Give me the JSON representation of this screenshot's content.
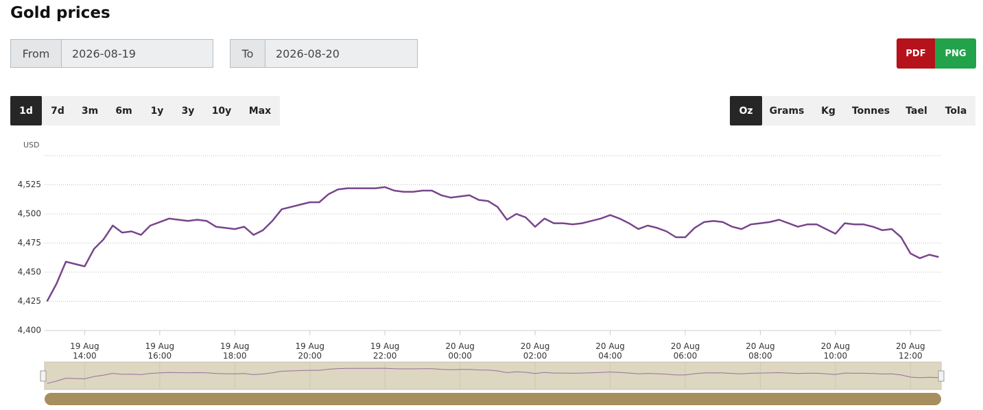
{
  "header": {
    "title": "Gold prices"
  },
  "from": {
    "label": "From",
    "value": "2026-08-19"
  },
  "to": {
    "label": "To",
    "value": "2026-08-20"
  },
  "export": [
    {
      "label": "PDF",
      "color": "#b5121b"
    },
    {
      "label": "PNG",
      "color": "#22a24a"
    }
  ],
  "ranges": [
    {
      "label": "1d",
      "active": true
    },
    {
      "label": "7d",
      "active": false
    },
    {
      "label": "3m",
      "active": false
    },
    {
      "label": "6m",
      "active": false
    },
    {
      "label": "1y",
      "active": false
    },
    {
      "label": "3y",
      "active": false
    },
    {
      "label": "10y",
      "active": false
    },
    {
      "label": "Max",
      "active": false
    }
  ],
  "units": [
    {
      "label": "Oz",
      "active": true
    },
    {
      "label": "Grams",
      "active": false
    },
    {
      "label": "Kg",
      "active": false
    },
    {
      "label": "Tonnes",
      "active": false
    },
    {
      "label": "Tael",
      "active": false
    },
    {
      "label": "Tola",
      "active": false
    }
  ],
  "chart_data": {
    "type": "line",
    "y_label": "USD",
    "color": "#77458b",
    "grid": true,
    "x": [
      "19 Aug 13:00",
      "19 Aug 13:15",
      "19 Aug 13:30",
      "19 Aug 13:45",
      "19 Aug 14:00",
      "19 Aug 14:15",
      "19 Aug 14:30",
      "19 Aug 14:45",
      "19 Aug 15:00",
      "19 Aug 15:15",
      "19 Aug 15:30",
      "19 Aug 15:45",
      "19 Aug 16:00",
      "19 Aug 16:15",
      "19 Aug 16:30",
      "19 Aug 16:45",
      "19 Aug 17:00",
      "19 Aug 17:15",
      "19 Aug 17:30",
      "19 Aug 17:45",
      "19 Aug 18:00",
      "19 Aug 18:15",
      "19 Aug 18:30",
      "19 Aug 18:45",
      "19 Aug 19:00",
      "19 Aug 19:15",
      "19 Aug 19:30",
      "19 Aug 19:45",
      "19 Aug 20:00",
      "19 Aug 20:15",
      "19 Aug 20:30",
      "19 Aug 20:45",
      "19 Aug 21:00",
      "19 Aug 21:15",
      "19 Aug 21:30",
      "19 Aug 21:45",
      "19 Aug 22:00",
      "19 Aug 22:15",
      "19 Aug 22:30",
      "19 Aug 22:45",
      "19 Aug 23:00",
      "19 Aug 23:15",
      "19 Aug 23:30",
      "19 Aug 23:45",
      "20 Aug 00:00",
      "20 Aug 00:15",
      "20 Aug 00:30",
      "20 Aug 00:45",
      "20 Aug 01:00",
      "20 Aug 01:15",
      "20 Aug 01:30",
      "20 Aug 01:45",
      "20 Aug 02:00",
      "20 Aug 02:15",
      "20 Aug 02:30",
      "20 Aug 02:45",
      "20 Aug 03:00",
      "20 Aug 03:15",
      "20 Aug 03:30",
      "20 Aug 03:45",
      "20 Aug 04:00",
      "20 Aug 04:15",
      "20 Aug 04:30",
      "20 Aug 04:45",
      "20 Aug 05:00",
      "20 Aug 05:15",
      "20 Aug 05:30",
      "20 Aug 05:45",
      "20 Aug 06:00",
      "20 Aug 06:15",
      "20 Aug 06:30",
      "20 Aug 06:45",
      "20 Aug 07:00",
      "20 Aug 07:15",
      "20 Aug 07:30",
      "20 Aug 07:45",
      "20 Aug 08:00",
      "20 Aug 08:15",
      "20 Aug 08:30",
      "20 Aug 08:45",
      "20 Aug 09:00",
      "20 Aug 09:15",
      "20 Aug 09:30",
      "20 Aug 09:45",
      "20 Aug 10:00",
      "20 Aug 10:15",
      "20 Aug 10:30",
      "20 Aug 10:45",
      "20 Aug 11:00",
      "20 Aug 11:15",
      "20 Aug 11:30",
      "20 Aug 11:45",
      "20 Aug 12:00",
      "20 Aug 12:15",
      "20 Aug 12:30",
      "20 Aug 12:45"
    ],
    "values": [
      4425,
      4440,
      4459,
      4457,
      4455,
      4470,
      4478,
      4490,
      4484,
      4485,
      4482,
      4490,
      4493,
      4496,
      4495,
      4494,
      4495,
      4494,
      4489,
      4488,
      4487,
      4489,
      4482,
      4486,
      4494,
      4504,
      4506,
      4508,
      4510,
      4510,
      4517,
      4521,
      4522,
      4522,
      4522,
      4522,
      4523,
      4520,
      4519,
      4519,
      4520,
      4520,
      4516,
      4514,
      4515,
      4516,
      4512,
      4511,
      4506,
      4495,
      4500,
      4497,
      4489,
      4496,
      4492,
      4492,
      4491,
      4492,
      4494,
      4496,
      4499,
      4496,
      4492,
      4487,
      4490,
      4488,
      4485,
      4480,
      4480,
      4488,
      4493,
      4494,
      4493,
      4489,
      4487,
      4491,
      4492,
      4493,
      4495,
      4492,
      4489,
      4491,
      4491,
      4487,
      4483,
      4492,
      4491,
      4491,
      4489,
      4486,
      4487,
      4480,
      4466,
      4462,
      4465,
      4463
    ],
    "xlim": [
      "19 Aug 12:56",
      "20 Aug 12:49"
    ],
    "xticks": [
      "19 Aug 14:00",
      "19 Aug 16:00",
      "19 Aug 18:00",
      "19 Aug 20:00",
      "19 Aug 22:00",
      "20 Aug 00:00",
      "20 Aug 02:00",
      "20 Aug 04:00",
      "20 Aug 06:00",
      "20 Aug 08:00",
      "20 Aug 10:00",
      "20 Aug 12:00"
    ],
    "ylim": [
      4400,
      4550
    ],
    "yticks": [
      {
        "value": 4400,
        "label": "4,400"
      },
      {
        "value": 4425,
        "label": "4,425"
      },
      {
        "value": 4450,
        "label": "4,450"
      },
      {
        "value": 4475,
        "label": "4,475"
      },
      {
        "value": 4500,
        "label": "4,500"
      },
      {
        "value": 4525,
        "label": "4,525"
      }
    ]
  }
}
